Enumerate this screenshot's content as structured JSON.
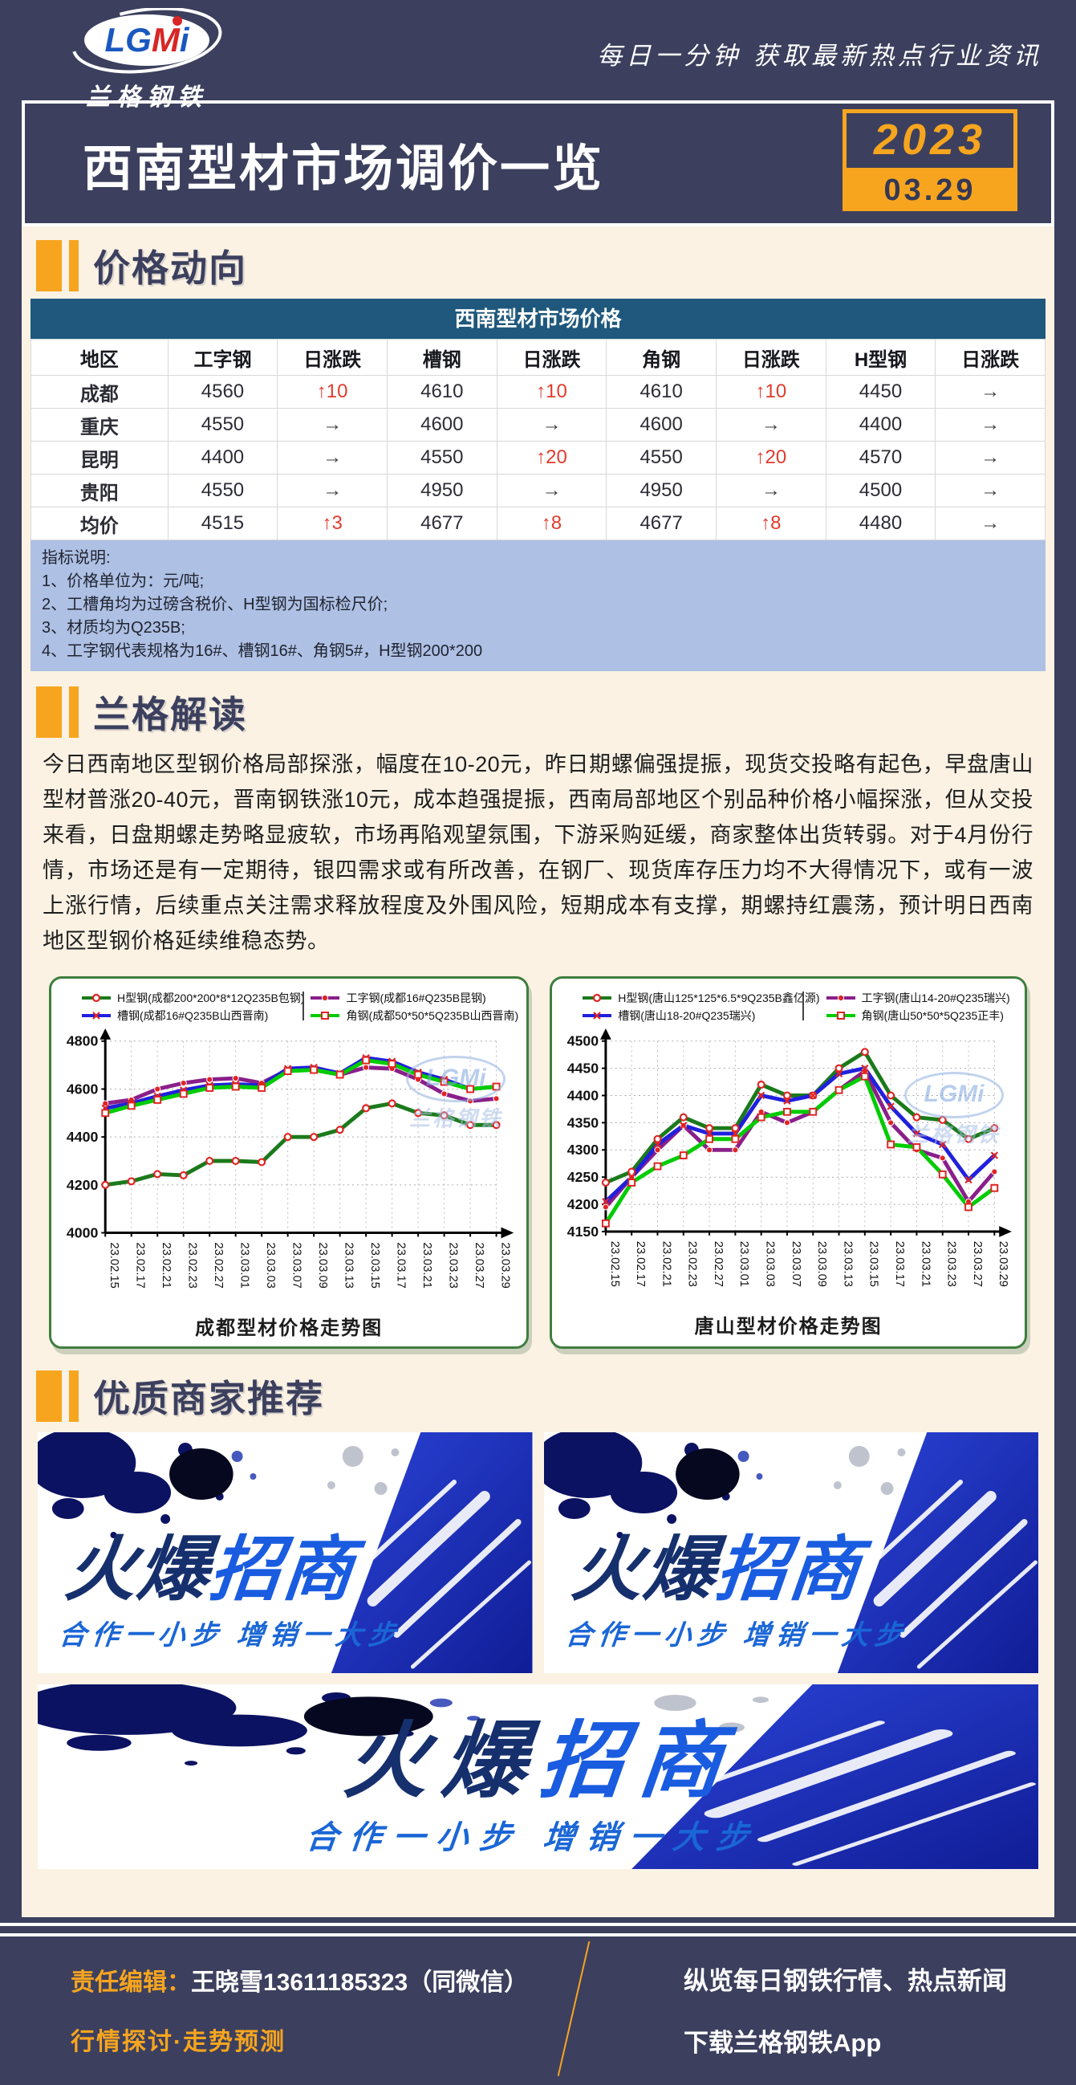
{
  "page": {
    "bg_navy": "#3c405e",
    "content_cream": "#fbf2e4",
    "accent_orange": "#f7a51f",
    "table_header_blue": "#1f587c",
    "notes_blue": "#aec0e4",
    "up_red": "#e23b2e"
  },
  "header": {
    "logo_l1": "LG",
    "logo_l2": "M",
    "logo_l3": "i",
    "logo_name": "兰格钢铁",
    "tagline": "每日一分钟  获取最新热点行业资讯",
    "title": "西南型材市场调价一览",
    "date_year": "2023",
    "date_day": "03.29"
  },
  "sections": {
    "s1": "价格动向",
    "s2": "兰格解读",
    "s3": "优质商家推荐"
  },
  "price_table": {
    "title": "西南型材市场价格",
    "columns": [
      "地区",
      "工字钢",
      "日涨跌",
      "槽钢",
      "日涨跌",
      "角钢",
      "日涨跌",
      "H型钢",
      "日涨跌"
    ],
    "rows": [
      [
        "成都",
        "4560",
        "↑10",
        "4610",
        "↑10",
        "4610",
        "↑10",
        "4450",
        "→"
      ],
      [
        "重庆",
        "4550",
        "→",
        "4600",
        "→",
        "4600",
        "→",
        "4400",
        "→"
      ],
      [
        "昆明",
        "4400",
        "→",
        "4550",
        "↑20",
        "4550",
        "↑20",
        "4570",
        "→"
      ],
      [
        "贵阳",
        "4550",
        "→",
        "4950",
        "→",
        "4950",
        "→",
        "4500",
        "→"
      ],
      [
        "均价",
        "4515",
        "↑3",
        "4677",
        "↑8",
        "4677",
        "↑8",
        "4480",
        "→"
      ]
    ]
  },
  "notes": {
    "title": "指标说明:",
    "items": [
      "1、价格单位为：元/吨;",
      "2、工槽角均为过磅含税价、H型钢为国标检尺价;",
      "3、材质均为Q235B;",
      "4、工字钢代表规格为16#、槽钢16#、角钢5#，H型钢200*200"
    ]
  },
  "interpretation": {
    "paragraph": "今日西南地区型钢价格局部探涨，幅度在10-20元，昨日期螺偏强提振，现货交投略有起色，早盘唐山型材普涨20-40元，晋南钢铁涨10元，成本趋强提振，西南局部地区个别品种价格小幅探涨，但从交投来看，日盘期螺走势略显疲软，市场再陷观望氛围，下游采购延缓，商家整体出货转弱。对于4月份行情，市场还是有一定期待，银四需求或有所改善，在钢厂、现货库存压力均不大得情况下，或有一波上涨行情，后续重点关注需求释放程度及外围风险，短期成本有支撑，期螺持红震荡，预计明日西南地区型钢价格延续维稳态势。"
  },
  "chart_data": [
    {
      "type": "line",
      "title": "成都型材价格走势图",
      "categories": [
        "23.02.15",
        "23.02.17",
        "23.02.21",
        "23.02.23",
        "23.02.27",
        "23.03.01",
        "23.03.03",
        "23.03.07",
        "23.03.09",
        "23.03.13",
        "23.03.15",
        "23.03.17",
        "23.03.21",
        "23.03.23",
        "23.03.27",
        "23.03.29"
      ],
      "ylim": [
        4000,
        4800
      ],
      "yticks": [
        4000,
        4200,
        4400,
        4600,
        4800
      ],
      "grid": true,
      "legend_position": "top",
      "series": [
        {
          "name": "H型钢(成都200*200*8*12Q235B包钢)",
          "color": "#1b7a1b",
          "marker": "circle",
          "values": [
            4200,
            4215,
            4245,
            4240,
            4300,
            4300,
            4295,
            4400,
            4400,
            4430,
            4520,
            4540,
            4500,
            4490,
            4450,
            4450
          ]
        },
        {
          "name": "工字钢(成都16#Q235B昆钢)",
          "color": "#8a1f8a",
          "marker": "dot",
          "values": [
            4540,
            4555,
            4600,
            4625,
            4640,
            4645,
            4625,
            4680,
            4680,
            4660,
            4690,
            4685,
            4640,
            4580,
            4550,
            4560
          ]
        },
        {
          "name": "槽钢(成都16#Q235B山西晋南)",
          "color": "#2020dd",
          "marker": "x",
          "values": [
            4520,
            4540,
            4570,
            4595,
            4615,
            4620,
            4615,
            4685,
            4690,
            4665,
            4730,
            4715,
            4670,
            4640,
            4600,
            4610
          ]
        },
        {
          "name": "角钢(成都50*50*5Q235B山西晋南)",
          "color": "#00cc00",
          "marker": "square",
          "values": [
            4500,
            4530,
            4555,
            4580,
            4605,
            4610,
            4605,
            4675,
            4680,
            4660,
            4720,
            4705,
            4660,
            4630,
            4600,
            4610
          ]
        }
      ]
    },
    {
      "type": "line",
      "title": "唐山型材价格走势图",
      "categories": [
        "23.02.15",
        "23.02.17",
        "23.02.21",
        "23.02.23",
        "23.02.27",
        "23.03.01",
        "23.03.03",
        "23.03.07",
        "23.03.09",
        "23.03.13",
        "23.03.15",
        "23.03.17",
        "23.03.21",
        "23.03.23",
        "23.03.27",
        "23.03.29"
      ],
      "ylim": [
        4150,
        4500
      ],
      "yticks": [
        4150,
        4200,
        4250,
        4300,
        4350,
        4400,
        4450,
        4500
      ],
      "grid": true,
      "legend_position": "top",
      "series": [
        {
          "name": "H型钢(唐山125*125*6.5*9Q235B鑫亿源)",
          "color": "#1b7a1b",
          "marker": "circle",
          "values": [
            4240,
            4260,
            4320,
            4360,
            4340,
            4340,
            4420,
            4400,
            4400,
            4450,
            4480,
            4400,
            4360,
            4355,
            4320,
            4340
          ]
        },
        {
          "name": "工字钢(唐山14-20#Q235瑞兴)",
          "color": "#8a1f8a",
          "marker": "dot",
          "values": [
            4195,
            4250,
            4300,
            4345,
            4300,
            4300,
            4370,
            4350,
            4370,
            4410,
            4445,
            4350,
            4300,
            4285,
            4205,
            4260
          ]
        },
        {
          "name": "槽钢(唐山18-20#Q235瑞兴)",
          "color": "#2020dd",
          "marker": "x",
          "values": [
            4205,
            4250,
            4310,
            4345,
            4330,
            4330,
            4400,
            4390,
            4400,
            4440,
            4450,
            4380,
            4330,
            4310,
            4245,
            4290
          ]
        },
        {
          "name": "角钢(唐山50*50*5Q235正丰)",
          "color": "#00cc00",
          "marker": "square",
          "values": [
            4165,
            4240,
            4270,
            4290,
            4320,
            4320,
            4360,
            4370,
            4370,
            4410,
            4435,
            4310,
            4305,
            4255,
            4195,
            4230
          ]
        }
      ]
    }
  ],
  "banners": {
    "items": [
      {
        "main_left": "火爆",
        "main_right": "招商",
        "sub": "合作一小步  增销一大步"
      },
      {
        "main_left": "火爆",
        "main_right": "招商",
        "sub": "合作一小步  增销一大步"
      },
      {
        "main_left": "火爆",
        "main_right": "招商",
        "sub": "合作一小步  增销一大步"
      }
    ]
  },
  "footer": {
    "editor_label": "责任编辑：",
    "editor_value": "王晓雪13611185323（同微信）",
    "slogan": "行情探讨·走势预测",
    "right_line1": "纵览每日钢铁行情、热点新闻",
    "right_line2": "下载兰格钢铁App"
  }
}
